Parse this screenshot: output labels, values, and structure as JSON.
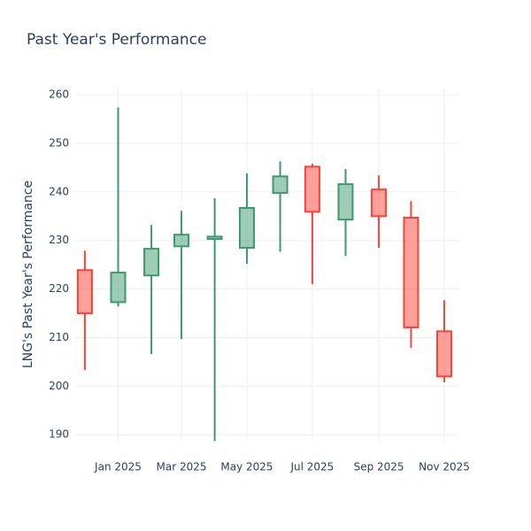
{
  "chart_data": {
    "type": "candlestick",
    "title": "Past Year's Performance",
    "y_label": "LNG's Past Year's Performance",
    "x": [
      "2024-12",
      "2025-01",
      "2025-02",
      "2025-03",
      "2025-04",
      "2025-05",
      "2025-06",
      "2025-07",
      "2025-08",
      "2025-09",
      "2025-10",
      "2025-11"
    ],
    "open": [
      223.9,
      217.3,
      222.8,
      228.8,
      230.3,
      228.5,
      239.8,
      245.2,
      234.3,
      240.5,
      234.7,
      211.3
    ],
    "high": [
      227.9,
      257.4,
      233.2,
      236.1,
      238.7,
      243.8,
      246.3,
      245.8,
      244.7,
      243.4,
      238.1,
      217.7
    ],
    "low": [
      203.3,
      216.4,
      206.6,
      209.7,
      188.7,
      225.2,
      227.7,
      221.0,
      226.8,
      228.5,
      207.9,
      200.8
    ],
    "close": [
      215.0,
      223.4,
      228.3,
      231.2,
      230.8,
      236.7,
      243.2,
      235.9,
      241.6,
      235.0,
      212.1,
      202.0
    ],
    "increasing_color": "#3d9970",
    "decreasing_color": "#ff4136",
    "xlim": [
      "2024-11-22",
      "2025-11-15"
    ],
    "xticks": [
      {
        "value": "2025-01",
        "label": "Jan 2025"
      },
      {
        "value": "2025-03",
        "label": "Mar 2025"
      },
      {
        "value": "2025-05",
        "label": "May 2025"
      },
      {
        "value": "2025-07",
        "label": "Jul 2025"
      },
      {
        "value": "2025-09",
        "label": "Sep 2025"
      },
      {
        "value": "2025-11",
        "label": "Nov 2025"
      }
    ],
    "ylim": [
      188.4,
      261.3
    ],
    "yticks": [
      190,
      200,
      210,
      220,
      230,
      240,
      250,
      260
    ],
    "grid": true
  }
}
